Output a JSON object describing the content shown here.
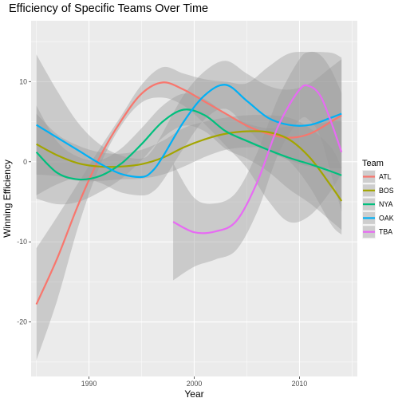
{
  "chart_data": {
    "type": "line",
    "title": "Efficiency of Specific Teams Over Time",
    "xlabel": "Year",
    "ylabel": "Winning Efficiency",
    "xlim": [
      1984.5,
      2015.5
    ],
    "ylim": [
      -26.8,
      17.6
    ],
    "x_ticks": [
      1990,
      2000,
      2010
    ],
    "y_ticks": [
      -20,
      -10,
      0,
      10
    ],
    "grid": true,
    "legend": {
      "title": "Team",
      "placement": "right"
    },
    "series": [
      {
        "name": "ATL",
        "color": "#F8766D",
        "x": [
          1985,
          1987,
          1989,
          1991,
          1993,
          1995,
          1997,
          1999,
          2001,
          2003,
          2005,
          2007,
          2009,
          2011,
          2013,
          2014
        ],
        "y": [
          -17.8,
          -12.0,
          -5.3,
          0.5,
          5.0,
          8.5,
          9.9,
          9.0,
          7.5,
          6.0,
          4.5,
          3.5,
          3.0,
          3.5,
          5.0,
          5.8
        ],
        "upper": [
          -10.8,
          -6.8,
          -2.6,
          1.6,
          5.6,
          9.6,
          11.8,
          11.0,
          10.3,
          10.0,
          9.8,
          11.8,
          13.5,
          13.7,
          13.6,
          13.0
        ],
        "lower": [
          -24.8,
          -17.2,
          -8.0,
          -0.6,
          4.4,
          7.4,
          8.0,
          7.0,
          4.7,
          2.0,
          -0.8,
          -4.8,
          -7.5,
          -6.7,
          -3.6,
          -1.4
        ]
      },
      {
        "name": "BOS",
        "color": "#A3A500",
        "x": [
          1985,
          1987,
          1989,
          1991,
          1993,
          1995,
          1997,
          1999,
          2001,
          2003,
          2005,
          2007,
          2009,
          2011,
          2013,
          2014
        ],
        "y": [
          2.2,
          0.8,
          -0.2,
          -0.6,
          -0.6,
          -0.3,
          0.5,
          1.8,
          2.8,
          3.5,
          3.8,
          3.7,
          2.8,
          0.5,
          -3.0,
          -4.9
        ],
        "upper": [
          6.0,
          3.4,
          2.0,
          1.2,
          1.0,
          1.5,
          2.6,
          4.2,
          5.0,
          5.5,
          5.8,
          5.8,
          5.5,
          4.2,
          1.8,
          -0.7
        ],
        "lower": [
          -1.6,
          -1.8,
          -2.4,
          -2.4,
          -2.2,
          -2.1,
          -1.6,
          -0.6,
          0.6,
          1.5,
          1.8,
          1.6,
          0.1,
          -3.2,
          -7.8,
          -9.1
        ]
      },
      {
        "name": "NYA",
        "color": "#00BF7D",
        "x": [
          1985,
          1987,
          1989,
          1991,
          1993,
          1995,
          1997,
          1999,
          2001,
          2003,
          2005,
          2007,
          2009,
          2011,
          2013,
          2014
        ],
        "y": [
          1.2,
          -1.4,
          -2.2,
          -1.8,
          -0.3,
          2.2,
          5.0,
          6.5,
          5.8,
          3.8,
          2.6,
          1.5,
          0.5,
          -0.3,
          -1.2,
          -1.7
        ],
        "upper": [
          7.0,
          2.5,
          0.6,
          0.2,
          1.6,
          4.2,
          7.0,
          8.5,
          7.8,
          6.0,
          4.8,
          4.2,
          4.4,
          4.6,
          5.0,
          5.1
        ],
        "lower": [
          -4.6,
          -5.3,
          -5.0,
          -3.8,
          -2.2,
          0.2,
          3.0,
          4.5,
          3.8,
          1.6,
          0.4,
          -1.2,
          -3.4,
          -5.2,
          -7.4,
          -8.5
        ]
      },
      {
        "name": "OAK",
        "color": "#00B0F6",
        "x": [
          1985,
          1987,
          1989,
          1991,
          1993,
          1995,
          1996,
          1997,
          1999,
          2001,
          2003,
          2005,
          2007,
          2009,
          2011,
          2013,
          2014
        ],
        "y": [
          4.6,
          3.0,
          1.4,
          -0.2,
          -1.5,
          -1.9,
          -1.2,
          0.6,
          5.0,
          8.3,
          9.6,
          7.6,
          5.5,
          4.6,
          4.6,
          5.5,
          6.0
        ],
        "upper": [
          13.4,
          8.8,
          4.8,
          2.2,
          0.8,
          0.4,
          1.4,
          3.6,
          8.3,
          11.3,
          12.6,
          11.0,
          9.5,
          9.0,
          9.8,
          11.8,
          12.8
        ],
        "lower": [
          -4.2,
          -2.8,
          -2.0,
          -2.6,
          -3.8,
          -4.2,
          -3.8,
          -2.4,
          1.7,
          5.3,
          6.6,
          4.2,
          1.5,
          0.2,
          -0.6,
          -0.8,
          -0.8
        ]
      },
      {
        "name": "TBA",
        "color": "#E76BF3",
        "x": [
          1998,
          2000,
          2002,
          2004,
          2006,
          2008,
          2010,
          2011,
          2012,
          2013,
          2014
        ],
        "y": [
          -7.5,
          -8.8,
          -8.7,
          -7.4,
          -2.5,
          4.5,
          9.0,
          9.4,
          8.2,
          5.0,
          1.2
        ],
        "upper": [
          -0.2,
          -4.5,
          -5.2,
          -3.8,
          1.2,
          8.0,
          12.8,
          13.7,
          13.3,
          11.5,
          8.6
        ],
        "lower": [
          -14.8,
          -13.1,
          -12.2,
          -11.0,
          -6.2,
          1.0,
          5.2,
          5.1,
          3.1,
          -1.5,
          -6.2
        ]
      }
    ]
  }
}
